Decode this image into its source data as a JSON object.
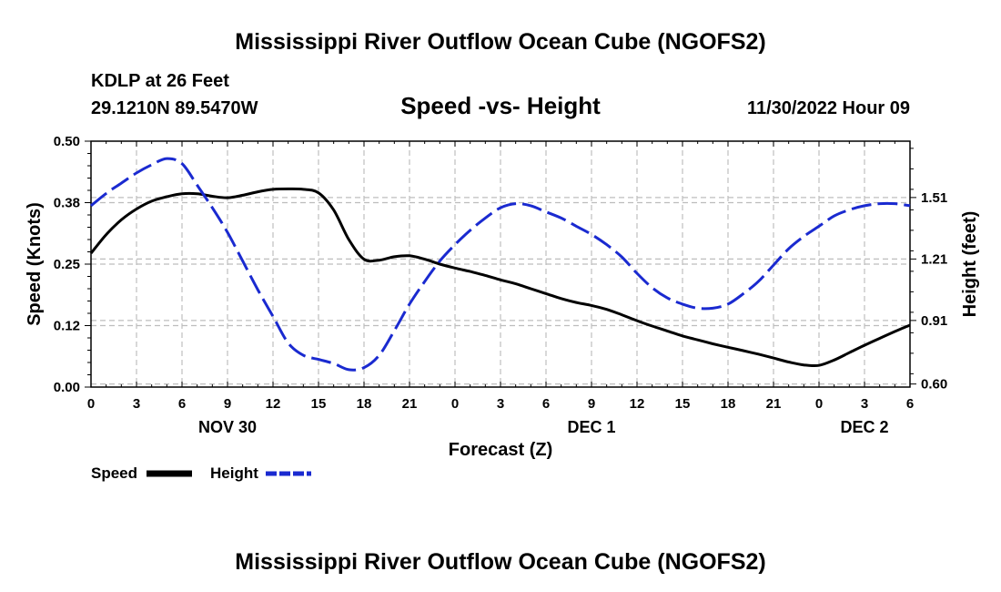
{
  "chart_data": {
    "type": "line",
    "title": "Mississippi River Outflow Ocean Cube (NGOFS2)",
    "footer_title": "Mississippi River Outflow Ocean Cube (NGOFS2)",
    "station": "KDLP at 26 Feet",
    "location": "29.1210N  89.5470W",
    "subtitle": "Speed -vs- Height",
    "date": "11/30/2022 Hour 09",
    "xlabel": "Forecast (Z)",
    "ylabel_left": "Speed (Knots)",
    "ylabel_right": "Height (feet)",
    "x_range": [
      0,
      54
    ],
    "x_tick_labels": [
      "0",
      "3",
      "6",
      "9",
      "12",
      "15",
      "18",
      "21",
      "0",
      "3",
      "6",
      "9",
      "12",
      "15",
      "18",
      "21",
      "0",
      "3",
      "6"
    ],
    "date_labels": [
      {
        "hour": 9,
        "label": "NOV 30"
      },
      {
        "hour": 33,
        "label": "DEC 1"
      },
      {
        "hour": 51,
        "label": "DEC 2"
      }
    ],
    "y_left": {
      "range": [
        0,
        0.5
      ],
      "tick_values": [
        0,
        0.125,
        0.25,
        0.375,
        0.5
      ],
      "tick_labels": [
        "0.00",
        "0.12",
        "0.25",
        "0.38",
        "0.50"
      ]
    },
    "y_right": {
      "range": [
        0.585,
        1.785
      ],
      "tick_values": [
        0.6,
        0.91,
        1.21,
        1.51
      ],
      "tick_labels": [
        "0.60",
        "0.91",
        "1.21",
        "1.51"
      ]
    },
    "series": [
      {
        "name": "Speed",
        "axis": "left",
        "color": "#000000",
        "dash": "solid",
        "x": [
          0,
          1,
          2,
          3,
          4,
          5,
          6,
          7,
          8,
          9,
          10,
          11,
          12,
          13,
          14,
          15,
          16,
          17,
          18,
          19,
          20,
          21,
          22,
          23,
          24,
          25,
          26,
          27,
          28,
          29,
          30,
          31,
          32,
          33,
          34,
          35,
          36,
          37,
          38,
          39,
          40,
          41,
          42,
          43,
          44,
          45,
          46,
          47,
          48,
          49,
          50,
          51,
          52,
          53,
          54
        ],
        "values": [
          0.272,
          0.31,
          0.34,
          0.362,
          0.378,
          0.387,
          0.393,
          0.393,
          0.388,
          0.385,
          0.39,
          0.397,
          0.402,
          0.403,
          0.402,
          0.395,
          0.36,
          0.3,
          0.26,
          0.258,
          0.265,
          0.267,
          0.26,
          0.25,
          0.242,
          0.235,
          0.227,
          0.218,
          0.21,
          0.2,
          0.19,
          0.18,
          0.172,
          0.166,
          0.158,
          0.147,
          0.135,
          0.124,
          0.114,
          0.104,
          0.096,
          0.088,
          0.081,
          0.074,
          0.067,
          0.059,
          0.051,
          0.045,
          0.044,
          0.055,
          0.07,
          0.085,
          0.099,
          0.113,
          0.126
        ]
      },
      {
        "name": "Height",
        "axis": "right",
        "color": "#1a2ad0",
        "dash": "dashed",
        "x": [
          0,
          1,
          2,
          3,
          4,
          5,
          6,
          7,
          8,
          9,
          10,
          11,
          12,
          13,
          14,
          15,
          16,
          17,
          18,
          19,
          20,
          21,
          22,
          23,
          24,
          25,
          26,
          27,
          28,
          29,
          30,
          31,
          32,
          33,
          34,
          35,
          36,
          37,
          38,
          39,
          40,
          41,
          42,
          43,
          44,
          45,
          46,
          47,
          48,
          49,
          50,
          51,
          52,
          53,
          54
        ],
        "values": [
          1.47,
          1.53,
          1.58,
          1.63,
          1.67,
          1.7,
          1.675,
          1.57,
          1.46,
          1.34,
          1.2,
          1.06,
          0.93,
          0.8,
          0.74,
          0.72,
          0.7,
          0.67,
          0.68,
          0.74,
          0.86,
          0.99,
          1.1,
          1.2,
          1.28,
          1.35,
          1.41,
          1.46,
          1.48,
          1.47,
          1.44,
          1.41,
          1.37,
          1.33,
          1.28,
          1.22,
          1.14,
          1.07,
          1.02,
          0.99,
          0.97,
          0.97,
          0.99,
          1.04,
          1.1,
          1.18,
          1.26,
          1.32,
          1.37,
          1.42,
          1.45,
          1.47,
          1.48,
          1.48,
          1.47
        ]
      }
    ],
    "legend": [
      {
        "label": "Speed",
        "color": "#000000",
        "style": "solid"
      },
      {
        "label": "Height",
        "color": "#1a2ad0",
        "style": "dashed"
      }
    ],
    "grid": true
  }
}
